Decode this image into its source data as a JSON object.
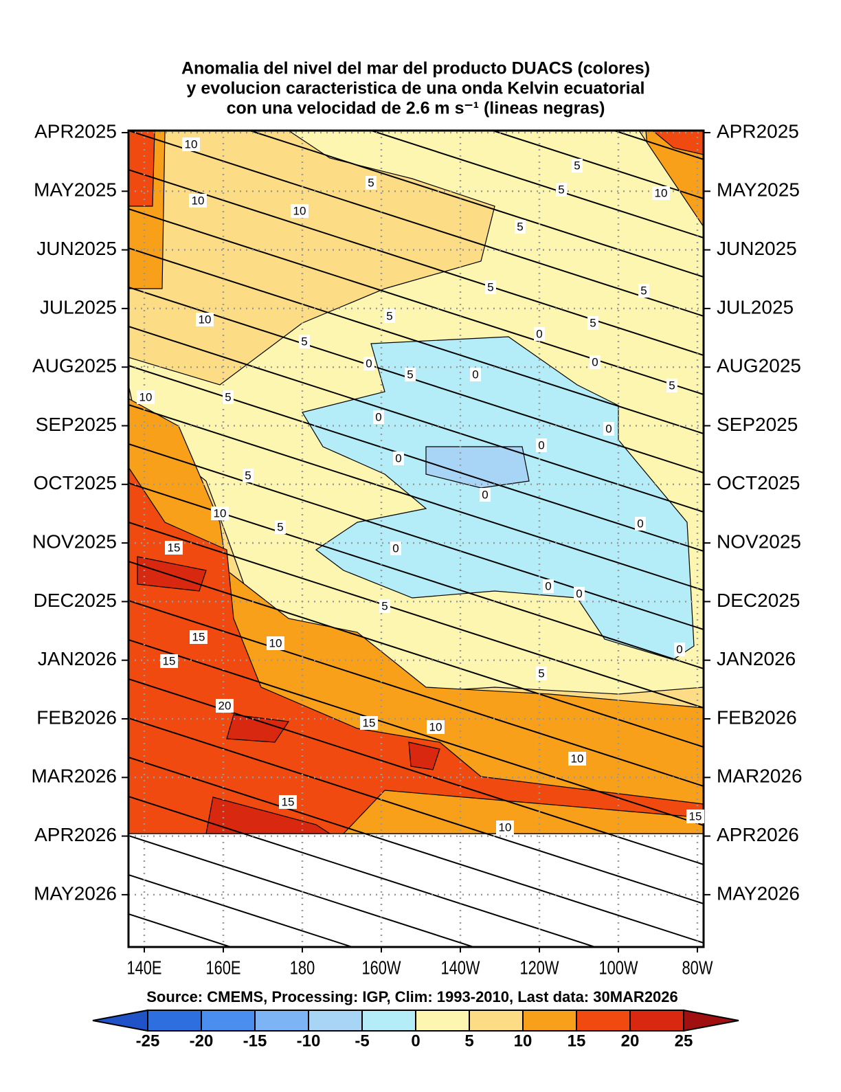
{
  "chart_data": {
    "type": "hovmoller",
    "title": [
      "Anomalia del nivel del mar del producto DUACS (colores)",
      "y evolucion caracteristica de una onda Kelvin ecuatorial",
      "con una velocidad de 2.6 m s⁻¹ (lineas negras)"
    ],
    "x_categories": [
      "140E",
      "160E",
      "180",
      "160W",
      "140W",
      "120W",
      "100W",
      "80W"
    ],
    "y_categories": [
      "APR2025",
      "MAY2025",
      "JUN2025",
      "JUL2025",
      "AUG2025",
      "SEP2025",
      "OCT2025",
      "NOV2025",
      "DEC2025",
      "JAN2026",
      "FEB2026",
      "MAR2026",
      "APR2026",
      "MAY2026"
    ],
    "source": "Source: CMEMS, Processing: IGP, Clim: 1993-2010, Last data: 30MAR2026",
    "colorbar": {
      "levels": [
        -25,
        -20,
        -15,
        -10,
        -5,
        0,
        5,
        10,
        15,
        20,
        25
      ],
      "colors": [
        "#2052c8",
        "#2e6fe0",
        "#4a8ff0",
        "#7db4f5",
        "#a8d4f5",
        "#b4ecf7",
        "#fdf6b0",
        "#fcdc84",
        "#f8a019",
        "#f04a10",
        "#d8280f",
        "#a01010"
      ]
    },
    "contour_labels": [
      10,
      10,
      10,
      5,
      5,
      5,
      10,
      5,
      5,
      5,
      10,
      5,
      5,
      0,
      5,
      0,
      5,
      0,
      0,
      5,
      10,
      5,
      0,
      0,
      0,
      0,
      5,
      0,
      10,
      5,
      0,
      15,
      0,
      0,
      0,
      5,
      15,
      10,
      15,
      0,
      5,
      20,
      15,
      10,
      10,
      15,
      15,
      10
    ],
    "grid": true
  }
}
